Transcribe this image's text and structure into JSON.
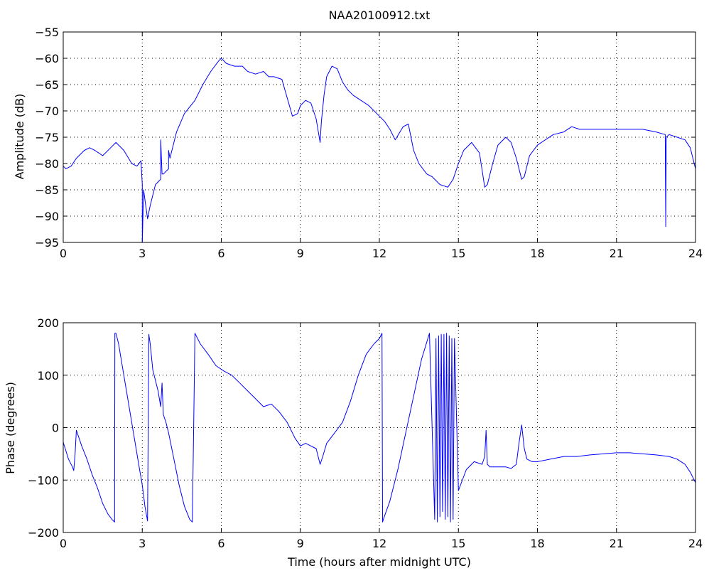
{
  "chart_data": [
    {
      "type": "line",
      "title": "NAA20100912.txt",
      "xlabel": "",
      "ylabel": "Amplitude (dB)",
      "xlim": [
        0,
        24
      ],
      "ylim": [
        -95,
        -55
      ],
      "xticks": [
        0,
        3,
        6,
        9,
        12,
        15,
        18,
        21,
        24
      ],
      "yticks": [
        -95,
        -90,
        -85,
        -80,
        -75,
        -70,
        -65,
        -60,
        -55
      ],
      "grid": true,
      "color": "#0000ff",
      "series": [
        {
          "x": [
            0,
            0.1,
            0.3,
            0.5,
            0.8,
            1.0,
            1.2,
            1.5,
            1.8,
            2.0,
            2.3,
            2.6,
            2.8,
            2.95,
            3.0,
            3.0,
            3.05,
            3.2,
            3.3,
            3.5,
            3.7,
            3.7,
            3.75,
            3.8,
            4.0,
            4.0,
            4.05,
            4.3,
            4.6,
            5.0,
            5.3,
            5.6,
            5.9,
            6.0,
            6.2,
            6.5,
            6.8,
            7.0,
            7.3,
            7.6,
            7.8,
            8.0,
            8.3,
            8.5,
            8.7,
            8.9,
            9.0,
            9.2,
            9.4,
            9.6,
            9.75,
            9.8,
            9.9,
            10.0,
            10.2,
            10.4,
            10.6,
            10.8,
            11.0,
            11.3,
            11.6,
            11.9,
            12.2,
            12.4,
            12.6,
            12.9,
            13.1,
            13.3,
            13.5,
            13.8,
            14.0,
            14.3,
            14.6,
            14.8,
            15.0,
            15.2,
            15.5,
            15.8,
            16.0,
            16.1,
            16.3,
            16.5,
            16.8,
            17.0,
            17.2,
            17.4,
            17.5,
            17.7,
            18.0,
            18.3,
            18.6,
            19.0,
            19.3,
            19.6,
            20.0,
            20.5,
            21.0,
            21.5,
            22.0,
            22.5,
            22.85,
            22.87,
            22.89,
            23.0,
            23.3,
            23.6,
            23.8,
            24.0
          ],
          "y": [
            -80.5,
            -81,
            -80.5,
            -79,
            -77.5,
            -77,
            -77.5,
            -78.5,
            -77,
            -76,
            -77.5,
            -80,
            -80.5,
            -79.5,
            -84,
            -95,
            -85,
            -90.5,
            -88,
            -84,
            -83,
            -75.5,
            -82,
            -82,
            -81,
            -77.5,
            -79,
            -74,
            -70.5,
            -68,
            -65,
            -62.5,
            -60.5,
            -60,
            -61,
            -61.5,
            -61.5,
            -62.5,
            -63,
            -62.5,
            -63.5,
            -63.5,
            -64,
            -67.5,
            -71,
            -70.5,
            -69,
            -68,
            -68.5,
            -71.5,
            -76,
            -72,
            -67,
            -63.5,
            -61.5,
            -62,
            -64.5,
            -66,
            -67,
            -68,
            -69,
            -70.5,
            -72,
            -73.5,
            -75.5,
            -73,
            -72.5,
            -77.5,
            -80,
            -82,
            -82.5,
            -84,
            -84.5,
            -83,
            -80,
            -77.5,
            -76,
            -78,
            -84.5,
            -84,
            -80,
            -76.5,
            -75,
            -76,
            -79,
            -83,
            -82.5,
            -78.5,
            -76.5,
            -75.5,
            -74.5,
            -74,
            -73,
            -73.5,
            -73.5,
            -73.5,
            -73.5,
            -73.5,
            -73.5,
            -74,
            -74.5,
            -92,
            -75,
            -74.5,
            -75,
            -75.5,
            -77,
            -81
          ]
        }
      ]
    },
    {
      "type": "line",
      "title": "",
      "xlabel": "Time (hours after midnight UTC)",
      "ylabel": "Phase (degrees)",
      "xlim": [
        0,
        24
      ],
      "ylim": [
        -200,
        200
      ],
      "xticks": [
        0,
        3,
        6,
        9,
        12,
        15,
        18,
        21,
        24
      ],
      "yticks": [
        -200,
        -100,
        0,
        100,
        200
      ],
      "grid": true,
      "color": "#0000ff",
      "series": [
        {
          "x": [
            0,
            0.2,
            0.35,
            0.4,
            0.45,
            0.5,
            0.7,
            0.9,
            1.1,
            1.3,
            1.5,
            1.7,
            1.85,
            1.95,
            1.96,
            2.0,
            2.1,
            2.3,
            2.5,
            2.7,
            2.9,
            3.0,
            3.1,
            3.2,
            3.25,
            3.3,
            3.4,
            3.6,
            3.7,
            3.75,
            3.8,
            3.9,
            4.0,
            4.2,
            4.4,
            4.6,
            4.8,
            4.9,
            4.95,
            5.0,
            5.2,
            5.5,
            5.8,
            6.1,
            6.4,
            6.7,
            7.0,
            7.3,
            7.6,
            7.9,
            8.2,
            8.5,
            8.8,
            9.0,
            9.2,
            9.4,
            9.6,
            9.75,
            9.85,
            10.0,
            10.3,
            10.6,
            10.9,
            11.2,
            11.5,
            11.8,
            12.0,
            12.05,
            12.1,
            12.12,
            12.15,
            12.4,
            12.7,
            13.0,
            13.3,
            13.6,
            13.9,
            14.1,
            14.15,
            14.2,
            14.25,
            14.3,
            14.35,
            14.4,
            14.45,
            14.5,
            14.55,
            14.6,
            14.65,
            14.7,
            14.75,
            14.8,
            14.85,
            15.0,
            15.3,
            15.6,
            15.9,
            16.0,
            16.05,
            16.1,
            16.2,
            16.5,
            16.8,
            17.0,
            17.2,
            17.3,
            17.4,
            17.5,
            17.6,
            17.8,
            18.0,
            18.5,
            19.0,
            19.5,
            20.0,
            20.5,
            21.0,
            21.5,
            22.0,
            22.5,
            23.0,
            23.3,
            23.6,
            23.8,
            24.0
          ],
          "y": [
            -28,
            -60,
            -75,
            -82,
            -50,
            -5,
            -35,
            -60,
            -90,
            -115,
            -145,
            -165,
            -175,
            -180,
            180,
            180,
            160,
            100,
            40,
            -20,
            -80,
            -110,
            -150,
            -178,
            178,
            160,
            110,
            70,
            40,
            85,
            25,
            10,
            -10,
            -60,
            -110,
            -150,
            -175,
            -180,
            0,
            180,
            160,
            140,
            118,
            108,
            100,
            85,
            70,
            55,
            40,
            45,
            30,
            10,
            -20,
            -35,
            -30,
            -35,
            -40,
            -70,
            -55,
            -30,
            -10,
            10,
            50,
            100,
            140,
            160,
            170,
            175,
            180,
            -180,
            -175,
            -140,
            -80,
            -10,
            60,
            130,
            180,
            -175,
            170,
            -180,
            175,
            -170,
            178,
            -160,
            178,
            -175,
            180,
            -170,
            175,
            -180,
            170,
            -175,
            170,
            -120,
            -80,
            -65,
            -70,
            -55,
            -5,
            -70,
            -75,
            -75,
            -75,
            -78,
            -70,
            -30,
            5,
            -40,
            -60,
            -65,
            -65,
            -60,
            -55,
            -55,
            -52,
            -50,
            -48,
            -48,
            -50,
            -52,
            -55,
            -60,
            -70,
            -85,
            -105
          ]
        }
      ]
    }
  ]
}
